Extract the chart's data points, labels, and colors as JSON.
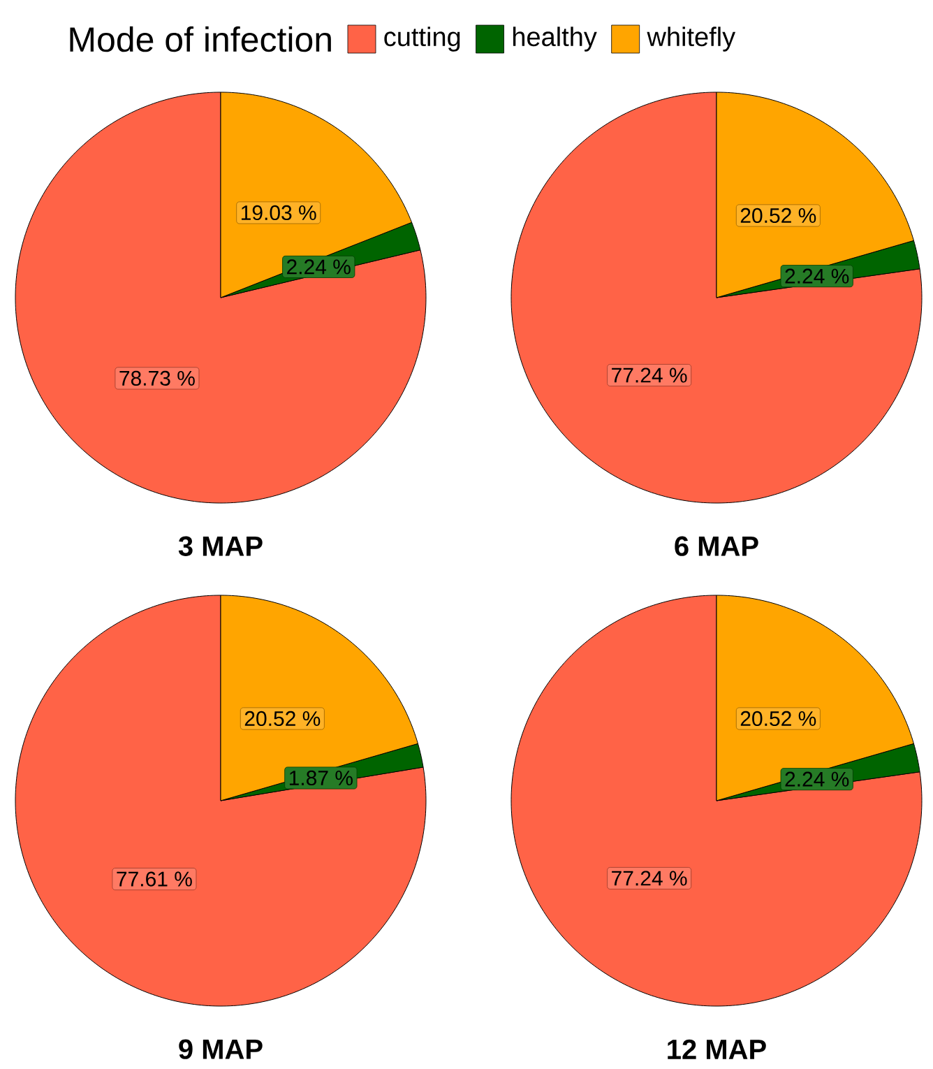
{
  "chart_data": [
    {
      "type": "pie",
      "title": "3 MAP",
      "legend": "top",
      "legend_title": "Mode of infection",
      "categories": [
        "cutting",
        "healthy",
        "whitefly"
      ],
      "values": [
        78.73,
        2.24,
        19.03
      ],
      "value_labels": [
        "78.73 %",
        "2.24 %",
        "19.03 %"
      ],
      "colors": [
        "#ff6347",
        "#006400",
        "#ffa500"
      ]
    },
    {
      "type": "pie",
      "title": "6 MAP",
      "categories": [
        null,
        null,
        null
      ],
      "values": [
        77.24,
        2.24,
        20.52
      ],
      "value_labels": [
        "77.24 %",
        "2.24 %",
        "20.52 %"
      ],
      "colors": [
        "#ff6347",
        "#006400",
        "#ffa500"
      ]
    },
    {
      "type": "pie",
      "title": "9 MAP",
      "categories": [
        null,
        null,
        null
      ],
      "values": [
        77.61,
        1.87,
        20.52
      ],
      "value_labels": [
        "77.61 %",
        "1.87 %",
        "20.52 %"
      ],
      "colors": [
        "#ff6347",
        "#006400",
        "#ffa500"
      ]
    },
    {
      "type": "pie",
      "title": "12 MAP",
      "categories": [
        null,
        null,
        null
      ],
      "values": [
        77.24,
        2.24,
        20.52
      ],
      "value_labels": [
        "77.24 %",
        "2.24 %",
        "20.52 %"
      ],
      "colors": [
        "#ff6347",
        "#006400",
        "#ffa500"
      ]
    }
  ]
}
